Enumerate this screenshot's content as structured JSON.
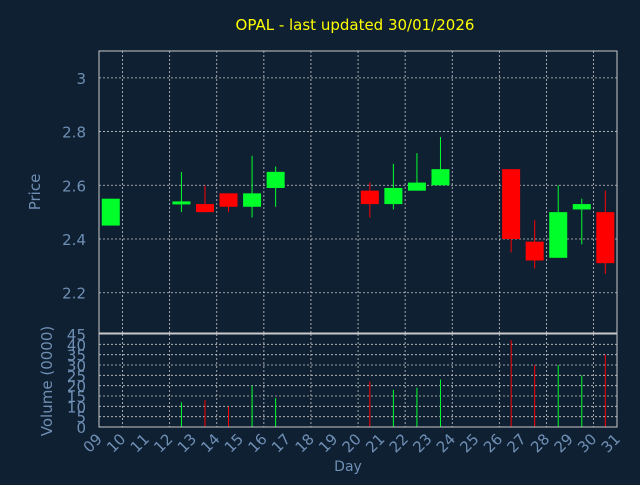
{
  "chart_data": {
    "type": "candlestick",
    "title": "OPAL - last updated 30/01/2026",
    "xlabel": "Day",
    "x_ticks": [
      "09",
      "10",
      "11",
      "12",
      "13",
      "14",
      "15",
      "16",
      "17",
      "18",
      "19",
      "20",
      "21",
      "22",
      "23",
      "24",
      "25",
      "26",
      "27",
      "28",
      "29",
      "30",
      "31"
    ],
    "price_panel": {
      "ylabel": "Price",
      "ylim": [
        2.05,
        3.1
      ],
      "y_ticks": [
        "2.2",
        "2.4",
        "2.6",
        "2.8",
        "3"
      ],
      "grid": true
    },
    "volume_panel": {
      "ylabel": "Volume (0000)",
      "ylim": [
        0,
        45
      ],
      "y_ticks": [
        "0",
        "5",
        "10",
        "15",
        "20",
        "25",
        "30",
        "35",
        "40",
        "45"
      ],
      "grid": true
    },
    "colors": {
      "background": "#0f2033",
      "up": "#00ff2a",
      "down": "#ff0000",
      "grid": "#c8c8c8",
      "axis_text": "#6f8fb4",
      "title": "#ffff00"
    },
    "candles": [
      {
        "day": "09",
        "open": 2.45,
        "high": 2.55,
        "low": 2.45,
        "close": 2.55,
        "volume": 0
      },
      {
        "day": "12",
        "open": 2.53,
        "high": 2.65,
        "low": 2.5,
        "close": 2.54,
        "volume": 12
      },
      {
        "day": "13",
        "open": 2.53,
        "high": 2.6,
        "low": 2.5,
        "close": 2.5,
        "volume": 13
      },
      {
        "day": "14",
        "open": 2.57,
        "high": 2.57,
        "low": 2.5,
        "close": 2.52,
        "volume": 10
      },
      {
        "day": "15",
        "open": 2.52,
        "high": 2.71,
        "low": 2.48,
        "close": 2.57,
        "volume": 20
      },
      {
        "day": "16",
        "open": 2.59,
        "high": 2.67,
        "low": 2.52,
        "close": 2.65,
        "volume": 14
      },
      {
        "day": "20",
        "open": 2.58,
        "high": 2.61,
        "low": 2.48,
        "close": 2.53,
        "volume": 22
      },
      {
        "day": "21",
        "open": 2.53,
        "high": 2.68,
        "low": 2.51,
        "close": 2.59,
        "volume": 18
      },
      {
        "day": "22",
        "open": 2.58,
        "high": 2.72,
        "low": 2.58,
        "close": 2.61,
        "volume": 19
      },
      {
        "day": "23",
        "open": 2.6,
        "high": 2.78,
        "low": 2.6,
        "close": 2.66,
        "volume": 23
      },
      {
        "day": "26",
        "open": 2.66,
        "high": 2.66,
        "low": 2.35,
        "close": 2.4,
        "volume": 42
      },
      {
        "day": "27",
        "open": 2.39,
        "high": 2.47,
        "low": 2.29,
        "close": 2.32,
        "volume": 30
      },
      {
        "day": "28",
        "open": 2.33,
        "high": 2.6,
        "low": 2.33,
        "close": 2.5,
        "volume": 30
      },
      {
        "day": "29",
        "open": 2.51,
        "high": 2.55,
        "low": 2.38,
        "close": 2.53,
        "volume": 25
      },
      {
        "day": "30",
        "open": 2.5,
        "high": 2.58,
        "low": 2.27,
        "close": 2.31,
        "volume": 35
      }
    ]
  }
}
